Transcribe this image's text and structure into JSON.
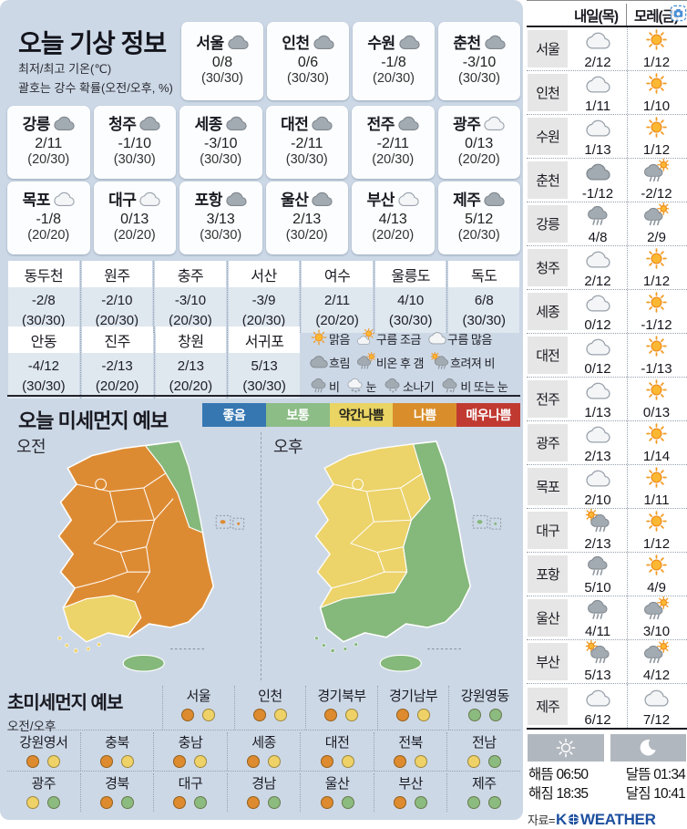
{
  "today": {
    "title": "오늘 기상 정보",
    "subtitle_temp": "최저/최고 기온(℃)",
    "subtitle_prob": "괄호는 강수 확률(오전/오후, %)",
    "cards_row1": [
      {
        "name": "서울",
        "icon": "cloud-gray",
        "temp": "0/8",
        "prob": "(30/30)"
      },
      {
        "name": "인천",
        "icon": "cloud-gray",
        "temp": "0/6",
        "prob": "(30/30)"
      },
      {
        "name": "수원",
        "icon": "cloud-gray",
        "temp": "-1/8",
        "prob": "(20/30)"
      },
      {
        "name": "춘천",
        "icon": "cloud-gray",
        "temp": "-3/10",
        "prob": "(30/30)"
      }
    ],
    "cards_row2": [
      {
        "name": "강릉",
        "icon": "cloud-gray",
        "temp": "2/11",
        "prob": "(20/30)"
      },
      {
        "name": "청주",
        "icon": "cloud-gray",
        "temp": "-1/10",
        "prob": "(30/30)"
      },
      {
        "name": "세종",
        "icon": "cloud-gray",
        "temp": "-3/10",
        "prob": "(30/30)"
      },
      {
        "name": "대전",
        "icon": "cloud-gray",
        "temp": "-2/11",
        "prob": "(30/30)"
      },
      {
        "name": "전주",
        "icon": "cloud-gray",
        "temp": "-2/11",
        "prob": "(20/30)"
      },
      {
        "name": "광주",
        "icon": "cloud-white",
        "temp": "0/13",
        "prob": "(20/20)"
      }
    ],
    "cards_row3": [
      {
        "name": "목포",
        "icon": "cloud-white",
        "temp": "-1/8",
        "prob": "(20/20)"
      },
      {
        "name": "대구",
        "icon": "cloud-white",
        "temp": "0/13",
        "prob": "(20/20)"
      },
      {
        "name": "포항",
        "icon": "cloud-gray",
        "temp": "3/13",
        "prob": "(30/30)"
      },
      {
        "name": "울산",
        "icon": "cloud-gray",
        "temp": "2/13",
        "prob": "(30/20)"
      },
      {
        "name": "부산",
        "icon": "cloud-white",
        "temp": "4/13",
        "prob": "(20/20)"
      },
      {
        "name": "제주",
        "icon": "cloud-gray",
        "temp": "5/12",
        "prob": "(20/30)"
      }
    ],
    "table_row1": [
      {
        "name": "동두천",
        "temp": "-2/8",
        "prob": "(30/30)"
      },
      {
        "name": "원주",
        "temp": "-2/10",
        "prob": "(20/30)"
      },
      {
        "name": "충주",
        "temp": "-3/10",
        "prob": "(20/30)"
      },
      {
        "name": "서산",
        "temp": "-3/9",
        "prob": "(20/30)"
      },
      {
        "name": "여수",
        "temp": "2/11",
        "prob": "(20/20)"
      },
      {
        "name": "울릉도",
        "temp": "4/10",
        "prob": "(30/30)"
      },
      {
        "name": "독도",
        "temp": "6/8",
        "prob": "(30/30)"
      }
    ],
    "table_row2": [
      {
        "name": "안동",
        "temp": "-4/12",
        "prob": "(30/30)"
      },
      {
        "name": "진주",
        "temp": "-2/13",
        "prob": "(20/20)"
      },
      {
        "name": "창원",
        "temp": "2/13",
        "prob": "(20/20)"
      },
      {
        "name": "서귀포",
        "temp": "5/13",
        "prob": "(30/30)"
      }
    ],
    "icon_legend_rows": [
      [
        {
          "icon": "sun",
          "label": "맑음"
        },
        {
          "icon": "cloud-sun",
          "label": "구름 조금"
        },
        {
          "icon": "cloud-white",
          "label": "구름 많음"
        }
      ],
      [
        {
          "icon": "cloud-gray",
          "label": "흐림"
        },
        {
          "icon": "rain-sun",
          "label": "비온 후 갬"
        },
        {
          "icon": "sun-rain",
          "label": "흐려져 비"
        }
      ],
      [
        {
          "icon": "rain",
          "label": "비"
        },
        {
          "icon": "snow",
          "label": "눈"
        },
        {
          "icon": "shower",
          "label": "소나기"
        },
        {
          "icon": "rain-snow",
          "label": "비 또는 눈"
        }
      ]
    ]
  },
  "dust": {
    "title": "오늘 미세먼지 예보",
    "levels": [
      {
        "label": "좋음",
        "color": "#3677b2",
        "text_color": "#ffffff"
      },
      {
        "label": "보통",
        "color": "#8cbd86",
        "text_color": "#ffffff"
      },
      {
        "label": "약간나쁨",
        "color": "#e9d464",
        "text_color": "#22221a"
      },
      {
        "label": "나쁨",
        "color": "#d98e2b",
        "text_color": "#ffffff"
      },
      {
        "label": "매우나쁨",
        "color": "#c03a32",
        "text_color": "#ffffff"
      }
    ],
    "maps": [
      {
        "label": "오전",
        "period": "am"
      },
      {
        "label": "오후",
        "period": "pm"
      }
    ],
    "map_colors": {
      "orange": "#dd8b33",
      "yellow": "#ecd36a",
      "green": "#85b87b"
    }
  },
  "ultrafine": {
    "title": "초미세먼지 예보",
    "subtitle": "오전/오후",
    "level_colors": {
      "나쁨": "#dd8b2e",
      "약간나쁨": "#eed268",
      "보통": "#8cbb80"
    },
    "row1": [
      {
        "name": "서울",
        "am": "나쁨",
        "pm": "약간나쁨"
      },
      {
        "name": "인천",
        "am": "나쁨",
        "pm": "약간나쁨"
      },
      {
        "name": "경기북부",
        "am": "나쁨",
        "pm": "약간나쁨"
      },
      {
        "name": "경기남부",
        "am": "나쁨",
        "pm": "약간나쁨"
      },
      {
        "name": "강원영동",
        "am": "보통",
        "pm": "보통"
      }
    ],
    "row2": [
      {
        "name": "강원영서",
        "am": "나쁨",
        "pm": "약간나쁨"
      },
      {
        "name": "충북",
        "am": "나쁨",
        "pm": "약간나쁨"
      },
      {
        "name": "충남",
        "am": "나쁨",
        "pm": "약간나쁨"
      },
      {
        "name": "세종",
        "am": "나쁨",
        "pm": "약간나쁨"
      },
      {
        "name": "대전",
        "am": "나쁨",
        "pm": "약간나쁨"
      },
      {
        "name": "전북",
        "am": "나쁨",
        "pm": "약간나쁨"
      },
      {
        "name": "전남",
        "am": "약간나쁨",
        "pm": "보통"
      }
    ],
    "row3": [
      {
        "name": "광주",
        "am": "약간나쁨",
        "pm": "보통"
      },
      {
        "name": "경북",
        "am": "나쁨",
        "pm": "보통"
      },
      {
        "name": "대구",
        "am": "나쁨",
        "pm": "보통"
      },
      {
        "name": "경남",
        "am": "나쁨",
        "pm": "보통"
      },
      {
        "name": "울산",
        "am": "나쁨",
        "pm": "보통"
      },
      {
        "name": "부산",
        "am": "나쁨",
        "pm": "보통"
      },
      {
        "name": "제주",
        "am": "보통",
        "pm": "보통"
      }
    ]
  },
  "forecast": {
    "col1": "내일(목)",
    "col2": "모레(금)",
    "rows": [
      {
        "city": "서울",
        "d1_icon": "cloud-white",
        "d1": "2/12",
        "d2_icon": "sun",
        "d2": "1/12"
      },
      {
        "city": "인천",
        "d1_icon": "cloud-white",
        "d1": "1/11",
        "d2_icon": "sun",
        "d2": "1/10"
      },
      {
        "city": "수원",
        "d1_icon": "cloud-white",
        "d1": "1/13",
        "d2_icon": "sun",
        "d2": "1/12"
      },
      {
        "city": "춘천",
        "d1_icon": "cloud-gray",
        "d1": "-1/12",
        "d2_icon": "rain-sun",
        "d2": "-2/12"
      },
      {
        "city": "강릉",
        "d1_icon": "rain",
        "d1": "4/8",
        "d2_icon": "rain-sun",
        "d2": "2/9"
      },
      {
        "city": "청주",
        "d1_icon": "cloud-white",
        "d1": "2/12",
        "d2_icon": "sun",
        "d2": "1/12"
      },
      {
        "city": "세종",
        "d1_icon": "cloud-white",
        "d1": "0/12",
        "d2_icon": "sun",
        "d2": "-1/12"
      },
      {
        "city": "대전",
        "d1_icon": "cloud-white",
        "d1": "0/12",
        "d2_icon": "sun",
        "d2": "-1/13"
      },
      {
        "city": "전주",
        "d1_icon": "cloud-white",
        "d1": "1/13",
        "d2_icon": "sun",
        "d2": "0/13"
      },
      {
        "city": "광주",
        "d1_icon": "cloud-white",
        "d1": "2/13",
        "d2_icon": "sun",
        "d2": "1/14"
      },
      {
        "city": "목포",
        "d1_icon": "cloud-white",
        "d1": "2/10",
        "d2_icon": "sun",
        "d2": "1/11"
      },
      {
        "city": "대구",
        "d1_icon": "sun-rain",
        "d1": "2/13",
        "d2_icon": "sun",
        "d2": "1/12"
      },
      {
        "city": "포항",
        "d1_icon": "rain",
        "d1": "5/10",
        "d2_icon": "sun",
        "d2": "4/9"
      },
      {
        "city": "울산",
        "d1_icon": "rain",
        "d1": "4/11",
        "d2_icon": "rain-sun",
        "d2": "3/10"
      },
      {
        "city": "부산",
        "d1_icon": "sun-rain",
        "d1": "5/13",
        "d2_icon": "rain-sun",
        "d2": "4/12"
      },
      {
        "city": "제주",
        "d1_icon": "cloud-white",
        "d1": "6/12",
        "d2_icon": "cloud-white",
        "d2": "7/12"
      }
    ]
  },
  "footer": {
    "sunrise_label": "해뜸",
    "sunrise_time": "06:50",
    "sunset_label": "해짐",
    "sunset_time": "18:35",
    "moonrise_label": "달뜸",
    "moonrise_time": "01:34",
    "moonset_label": "달짐",
    "moonset_time": "10:41",
    "source_label": "자료=",
    "source_name_k": "K",
    "source_name_rest": "WEATHER",
    "source_color": "#1c4f9e"
  }
}
